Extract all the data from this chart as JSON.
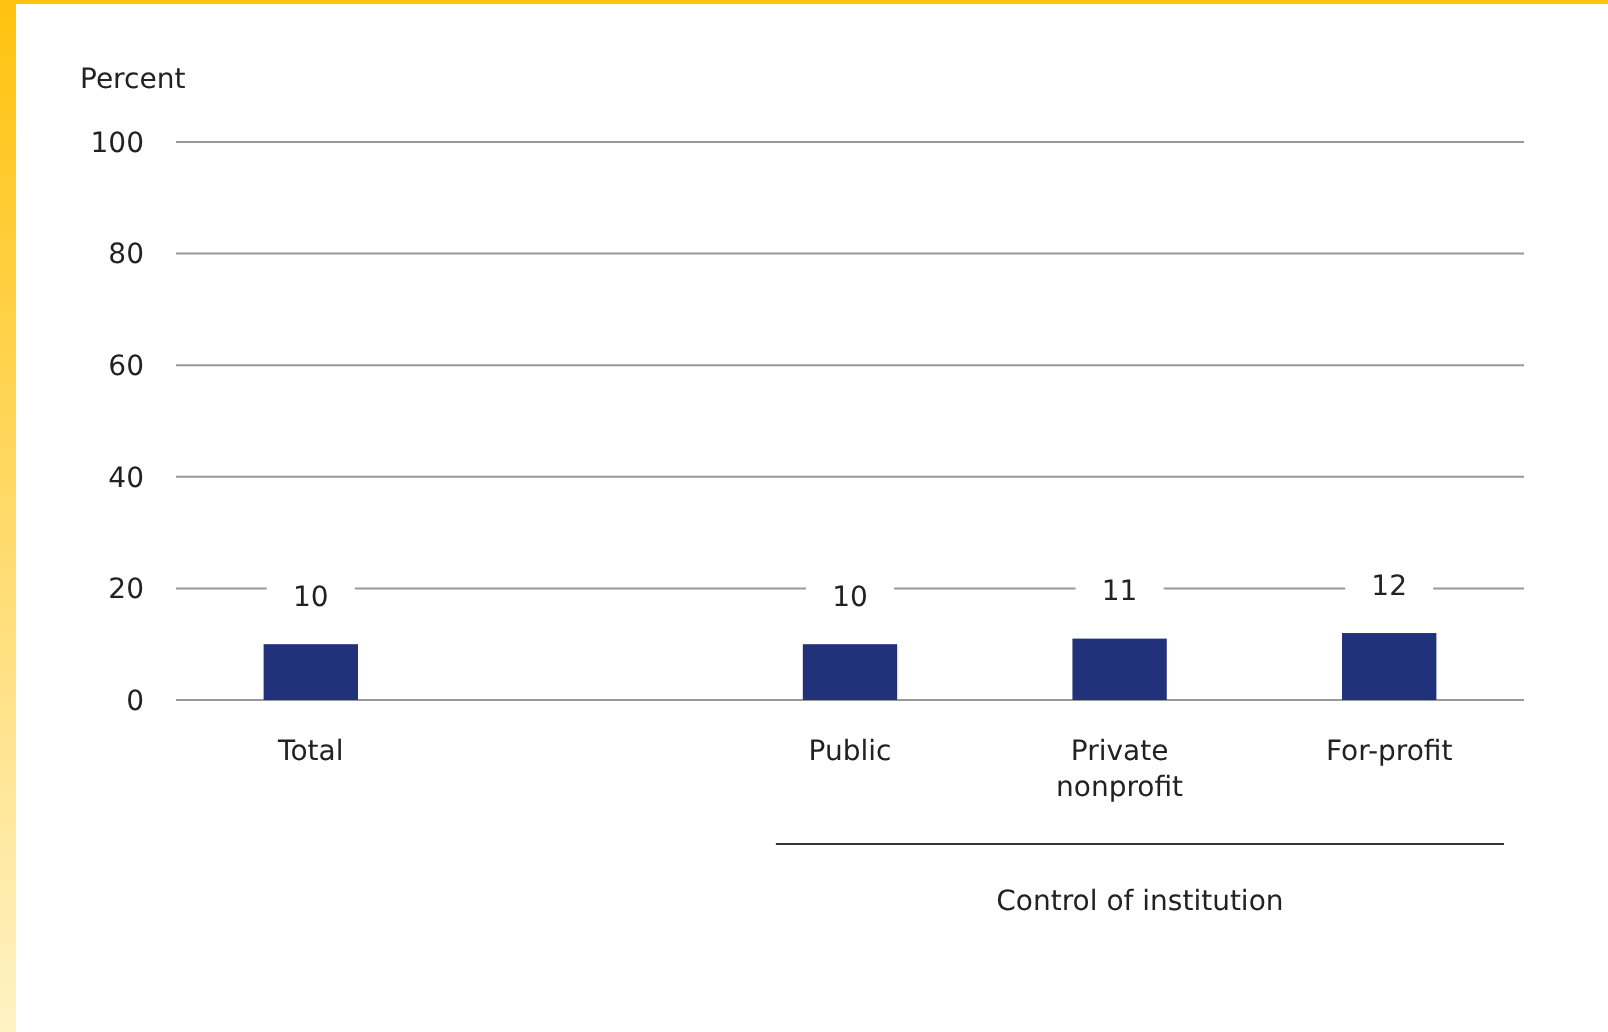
{
  "chart_data": {
    "type": "bar",
    "ylabel": "Percent",
    "categories": [
      "Total",
      null,
      "Public",
      "Private nonprofit",
      "For-profit"
    ],
    "values": [
      10,
      null,
      10,
      11,
      12
    ],
    "color": "#21317a",
    "ylim": [
      0,
      100
    ],
    "yticks": [
      0,
      20,
      40,
      60,
      80,
      100
    ],
    "grid": "y",
    "data_labels": true,
    "annotations": [
      "Control of institution"
    ]
  }
}
